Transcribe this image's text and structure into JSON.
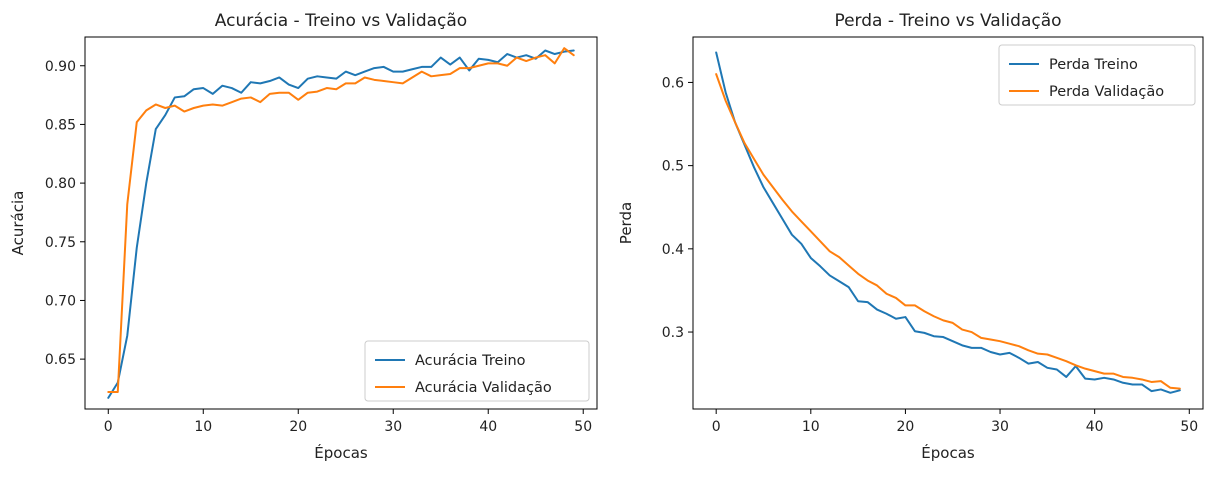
{
  "colors": {
    "train": "#1f77b4",
    "validation": "#ff7f0e",
    "axis": "#000000",
    "legend_border": "#cccccc"
  },
  "chart_data": [
    {
      "type": "line",
      "title": "Acurácia - Treino vs Validação",
      "xlabel": "Épocas",
      "ylabel": "Acurácia",
      "xlim": [
        -2.45,
        51.45
      ],
      "ylim": [
        0.6075,
        0.9245
      ],
      "xticks": [
        0,
        10,
        20,
        30,
        40,
        50
      ],
      "yticks": [
        0.65,
        0.7,
        0.75,
        0.8,
        0.85,
        0.9
      ],
      "ytick_labels": [
        "0.65",
        "0.70",
        "0.75",
        "0.80",
        "0.85",
        "0.90"
      ],
      "legend_position": "lower-right",
      "grid": false,
      "series": [
        {
          "name": "Acurácia Treino",
          "color": "train",
          "x": [
            0,
            1,
            2,
            3,
            4,
            5,
            6,
            7,
            8,
            9,
            10,
            11,
            12,
            13,
            14,
            15,
            16,
            17,
            18,
            19,
            20,
            21,
            22,
            23,
            24,
            25,
            26,
            27,
            28,
            29,
            30,
            31,
            32,
            33,
            34,
            35,
            36,
            37,
            38,
            39,
            40,
            41,
            42,
            43,
            44,
            45,
            46,
            47,
            48,
            49
          ],
          "y": [
            0.617,
            0.63,
            0.67,
            0.745,
            0.8,
            0.846,
            0.858,
            0.873,
            0.874,
            0.88,
            0.881,
            0.876,
            0.883,
            0.881,
            0.877,
            0.886,
            0.885,
            0.887,
            0.89,
            0.884,
            0.881,
            0.889,
            0.891,
            0.89,
            0.889,
            0.895,
            0.892,
            0.895,
            0.898,
            0.899,
            0.895,
            0.895,
            0.897,
            0.899,
            0.899,
            0.907,
            0.901,
            0.907,
            0.896,
            0.906,
            0.905,
            0.903,
            0.91,
            0.907,
            0.909,
            0.906,
            0.913,
            0.91,
            0.912,
            0.913
          ]
        },
        {
          "name": "Acurácia Validação",
          "color": "validation",
          "x": [
            0,
            1,
            2,
            3,
            4,
            5,
            6,
            7,
            8,
            9,
            10,
            11,
            12,
            13,
            14,
            15,
            16,
            17,
            18,
            19,
            20,
            21,
            22,
            23,
            24,
            25,
            26,
            27,
            28,
            29,
            30,
            31,
            32,
            33,
            34,
            35,
            36,
            37,
            38,
            39,
            40,
            41,
            42,
            43,
            44,
            45,
            46,
            47,
            48,
            49
          ],
          "y": [
            0.622,
            0.622,
            0.782,
            0.852,
            0.862,
            0.867,
            0.864,
            0.866,
            0.861,
            0.864,
            0.866,
            0.867,
            0.866,
            0.869,
            0.872,
            0.873,
            0.869,
            0.876,
            0.877,
            0.877,
            0.871,
            0.877,
            0.878,
            0.881,
            0.88,
            0.885,
            0.885,
            0.89,
            0.888,
            0.887,
            0.886,
            0.885,
            0.89,
            0.895,
            0.891,
            0.892,
            0.893,
            0.898,
            0.898,
            0.9,
            0.902,
            0.902,
            0.9,
            0.907,
            0.904,
            0.907,
            0.909,
            0.902,
            0.915,
            0.909
          ]
        }
      ]
    },
    {
      "type": "line",
      "title": "Perda - Treino vs Validação",
      "xlabel": "Épocas",
      "ylabel": "Perda",
      "xlim": [
        -2.45,
        51.45
      ],
      "ylim": [
        0.2075,
        0.6546
      ],
      "xticks": [
        0,
        10,
        20,
        30,
        40,
        50
      ],
      "yticks": [
        0.3,
        0.4,
        0.5,
        0.6
      ],
      "ytick_labels": [
        "0.3",
        "0.4",
        "0.5",
        "0.6"
      ],
      "legend_position": "upper-right",
      "grid": false,
      "series": [
        {
          "name": "Perda Treino",
          "color": "train",
          "x": [
            0,
            1,
            2,
            3,
            4,
            5,
            6,
            7,
            8,
            9,
            10,
            11,
            12,
            13,
            14,
            15,
            16,
            17,
            18,
            19,
            20,
            21,
            22,
            23,
            24,
            25,
            26,
            27,
            28,
            29,
            30,
            31,
            32,
            33,
            34,
            35,
            36,
            37,
            38,
            39,
            40,
            41,
            42,
            43,
            44,
            45,
            46,
            47,
            48,
            49
          ],
          "y": [
            0.636,
            0.588,
            0.552,
            0.525,
            0.498,
            0.474,
            0.455,
            0.436,
            0.417,
            0.406,
            0.389,
            0.379,
            0.368,
            0.361,
            0.354,
            0.337,
            0.336,
            0.327,
            0.322,
            0.316,
            0.318,
            0.301,
            0.299,
            0.295,
            0.294,
            0.289,
            0.284,
            0.281,
            0.281,
            0.276,
            0.273,
            0.275,
            0.269,
            0.262,
            0.264,
            0.257,
            0.255,
            0.246,
            0.259,
            0.244,
            0.243,
            0.245,
            0.243,
            0.239,
            0.237,
            0.237,
            0.229,
            0.231,
            0.227,
            0.23
          ]
        },
        {
          "name": "Perda Validação",
          "color": "validation",
          "x": [
            0,
            1,
            2,
            3,
            4,
            5,
            6,
            7,
            8,
            9,
            10,
            11,
            12,
            13,
            14,
            15,
            16,
            17,
            18,
            19,
            20,
            21,
            22,
            23,
            24,
            25,
            26,
            27,
            28,
            29,
            30,
            31,
            32,
            33,
            34,
            35,
            36,
            37,
            38,
            39,
            40,
            41,
            42,
            43,
            44,
            45,
            46,
            47,
            48,
            49
          ],
          "y": [
            0.61,
            0.578,
            0.552,
            0.527,
            0.508,
            0.489,
            0.474,
            0.459,
            0.445,
            0.433,
            0.421,
            0.409,
            0.397,
            0.39,
            0.38,
            0.37,
            0.362,
            0.356,
            0.346,
            0.341,
            0.332,
            0.332,
            0.325,
            0.319,
            0.314,
            0.311,
            0.303,
            0.3,
            0.293,
            0.291,
            0.289,
            0.286,
            0.283,
            0.278,
            0.274,
            0.273,
            0.269,
            0.265,
            0.26,
            0.256,
            0.253,
            0.25,
            0.25,
            0.246,
            0.245,
            0.243,
            0.24,
            0.241,
            0.233,
            0.232
          ]
        }
      ]
    }
  ]
}
